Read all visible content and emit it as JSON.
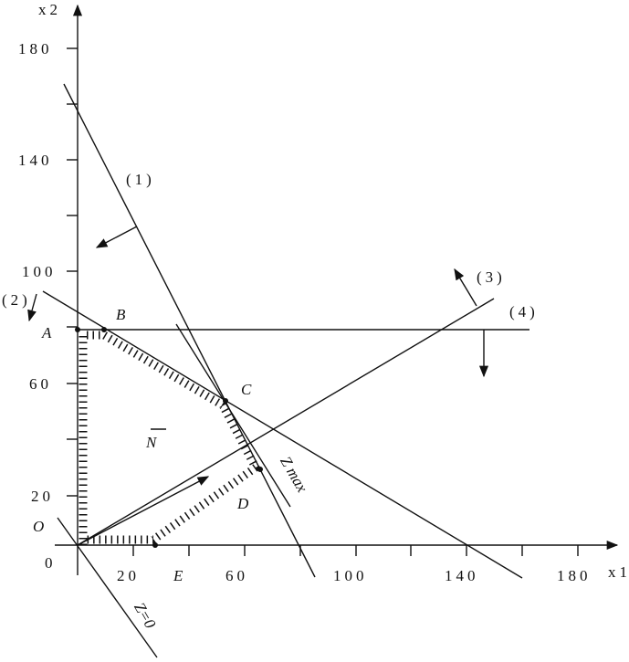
{
  "axes": {
    "x_label": "x1",
    "y_label": "x2",
    "y_ticks": [
      "180",
      "140",
      "100",
      "60",
      "20"
    ],
    "origin_label": "0",
    "x_ticks": [
      "20",
      "60",
      "100",
      "140",
      "180"
    ]
  },
  "points": {
    "A": "A",
    "B": "B",
    "C": "C",
    "D": "D",
    "E": "E",
    "O": "O",
    "N": "N"
  },
  "constraints": [
    "(1)",
    "(2)",
    "(3)",
    "(4)"
  ],
  "objective": {
    "max": "Z max",
    "zero": "Z=0"
  }
}
